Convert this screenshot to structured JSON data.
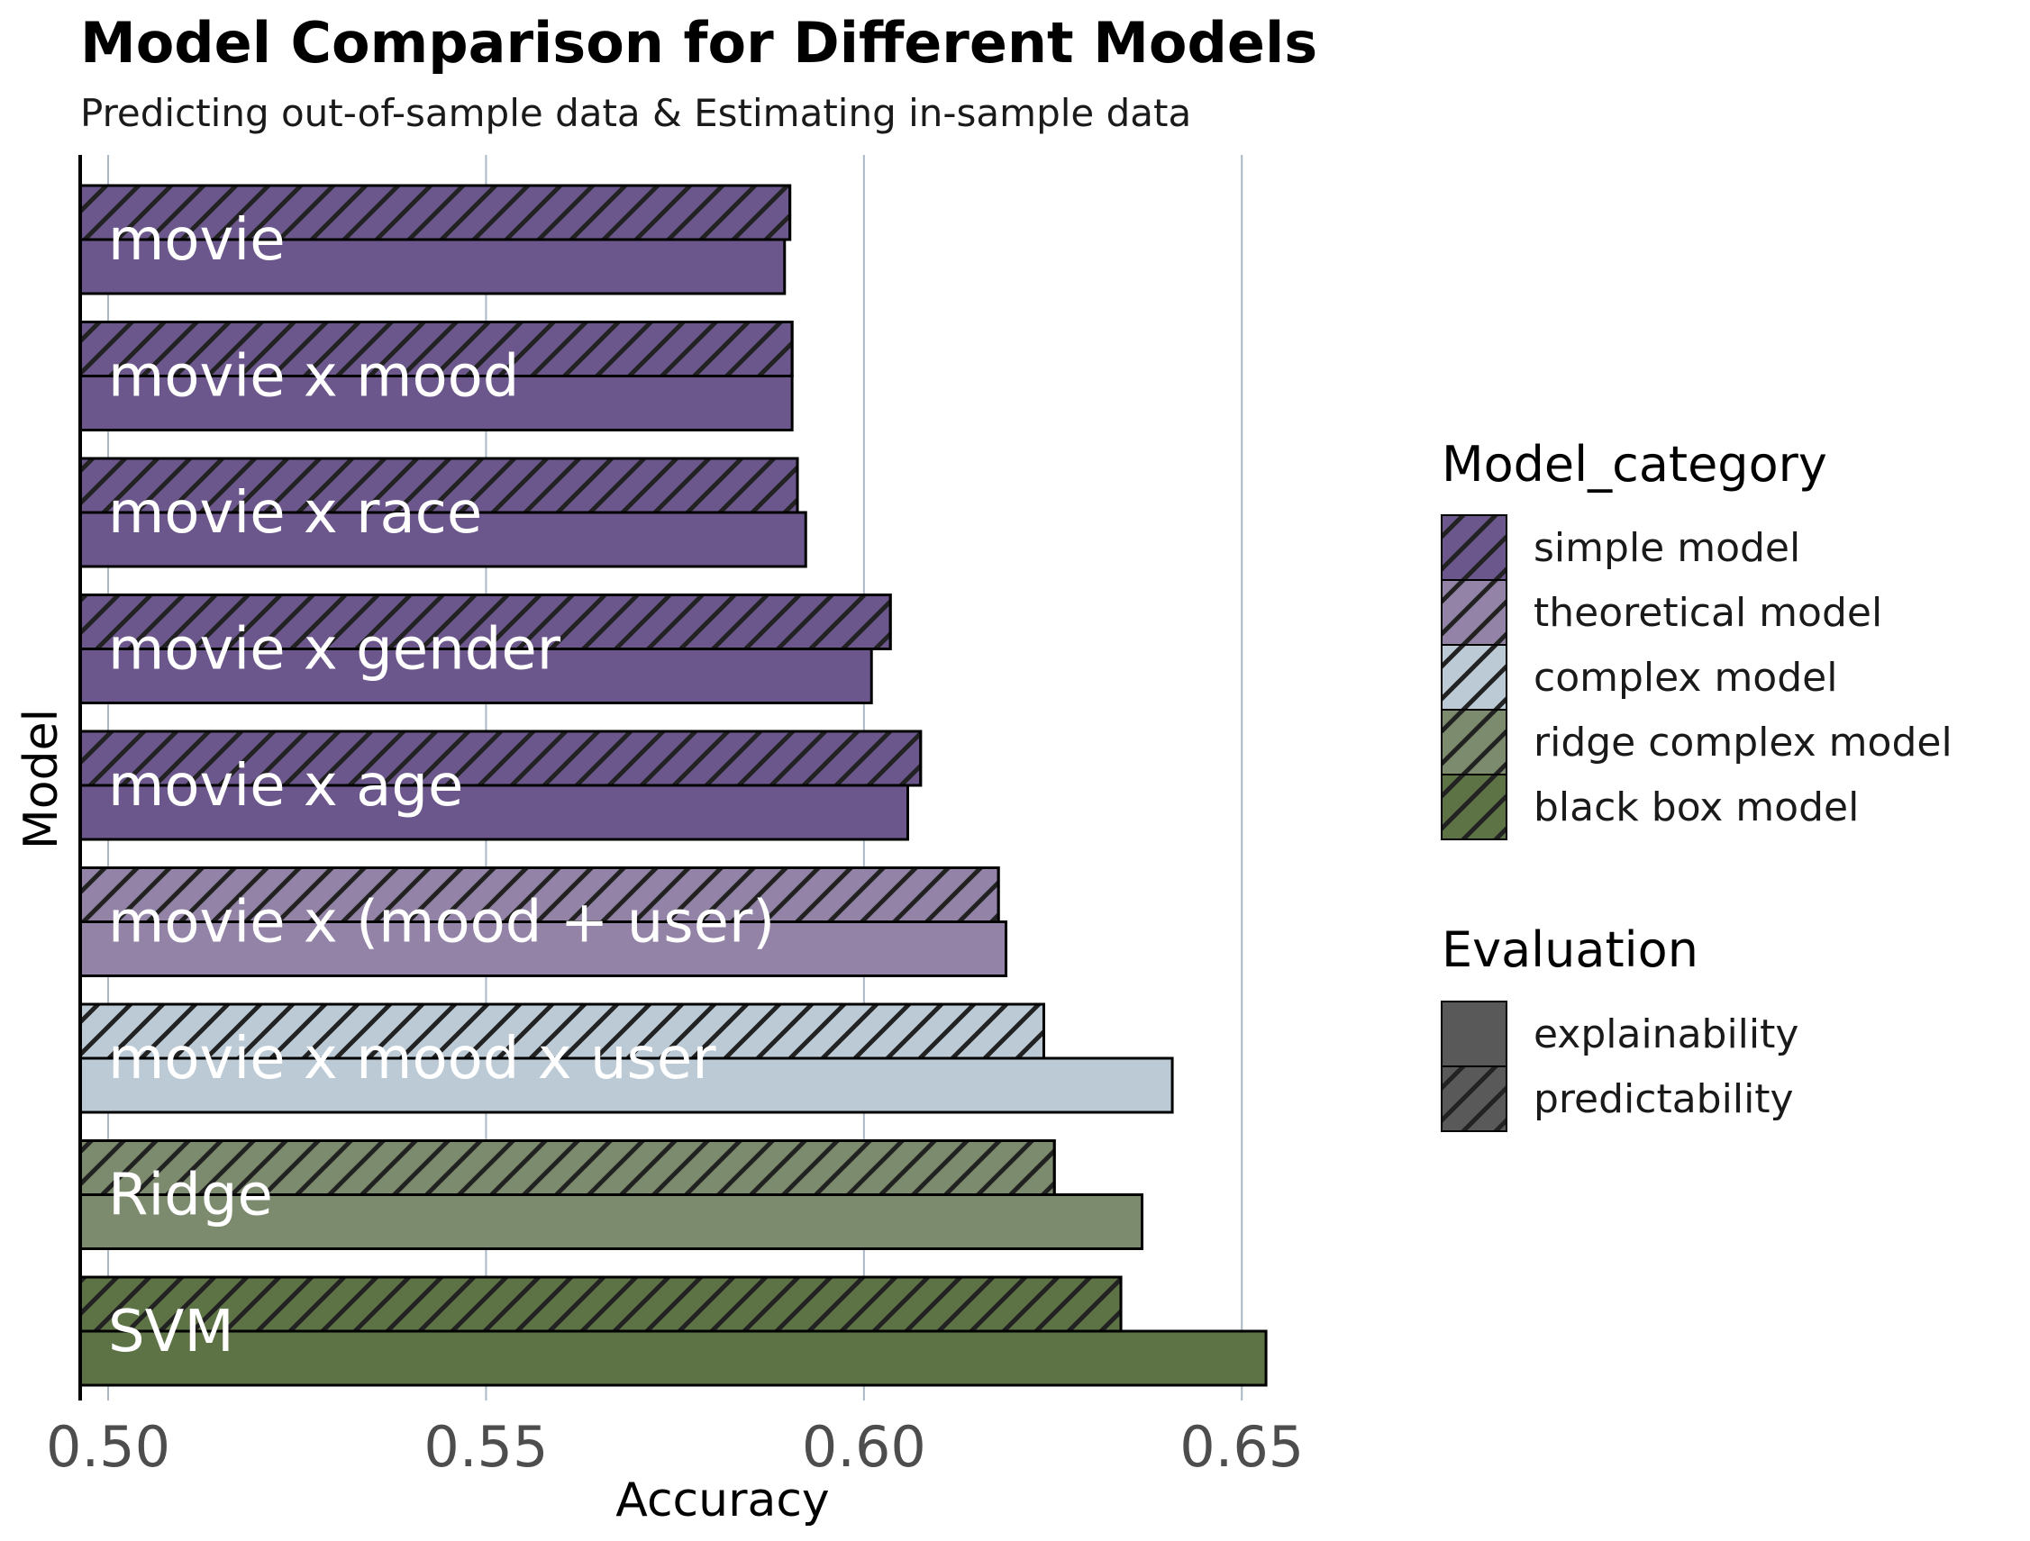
{
  "chart_data": {
    "type": "bar",
    "orientation": "horizontal",
    "title": "Model Comparison for Different Models",
    "subtitle": "Predicting out-of-sample data & Estimating in-sample data",
    "xlabel": "Accuracy",
    "ylabel": "Model",
    "xlim": [
      0.4963,
      0.6669
    ],
    "x_ticks": [
      {
        "value": 0.5,
        "label": "0.50"
      },
      {
        "value": 0.55,
        "label": "0.55"
      },
      {
        "value": 0.6,
        "label": "0.60"
      },
      {
        "value": 0.65,
        "label": "0.65"
      }
    ],
    "grid": "vertical major lines",
    "categories": [
      "movie",
      "movie x mood",
      "movie x race",
      "movie x gender",
      "movie x age",
      "movie x (mood + user)",
      "movie x mood x user",
      "Ridge",
      "SVM"
    ],
    "model_category": [
      "simple model",
      "simple model",
      "simple model",
      "simple model",
      "simple model",
      "theoretical model",
      "complex model",
      "ridge complex model",
      "black box model"
    ],
    "series": [
      {
        "name": "predictability",
        "values": [
          0.5902,
          0.5905,
          0.5912,
          0.6035,
          0.6075,
          0.6178,
          0.6238,
          0.6252,
          0.634
        ]
      },
      {
        "name": "explainability",
        "values": [
          0.5895,
          0.5905,
          0.5923,
          0.601,
          0.6058,
          0.6188,
          0.6408,
          0.6368,
          0.6532
        ]
      }
    ],
    "category_colors": {
      "simple model": "#6b578c",
      "theoretical model": "#9283a7",
      "complex model": "#bccad6",
      "ridge complex model": "#7c8b6e",
      "black box model": "#5d7245"
    },
    "legend": {
      "placement": "right",
      "groups": [
        {
          "title": "Model_category",
          "items": [
            "simple model",
            "theoretical model",
            "complex model",
            "ridge complex model",
            "black box model"
          ]
        },
        {
          "title": "Evaluation",
          "items": [
            "explainability",
            "predictability"
          ]
        }
      ]
    }
  }
}
